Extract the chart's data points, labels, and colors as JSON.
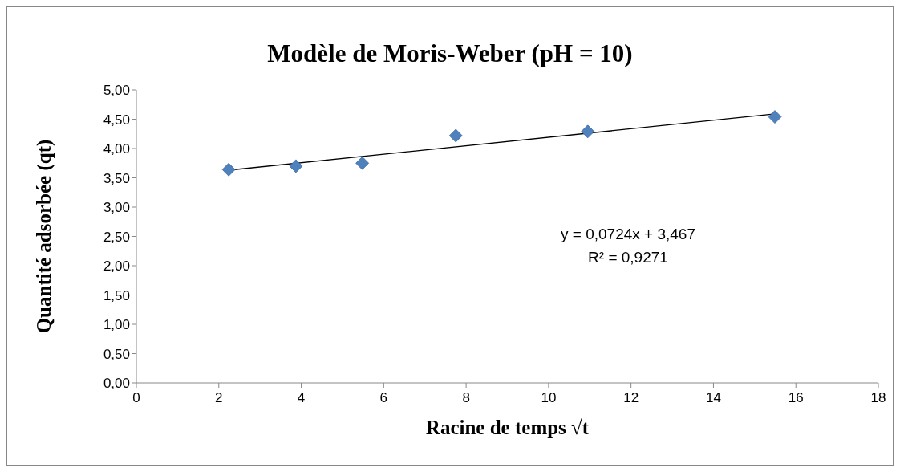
{
  "chart_data": {
    "type": "scatter",
    "title": "Modèle de Moris-Weber (pH = 10)",
    "xlabel": "Racine de temps √t",
    "ylabel": "Quantité adsorbée (qt)",
    "x": [
      2.24,
      3.87,
      5.48,
      7.75,
      10.95,
      15.49
    ],
    "series": [
      {
        "color": "#4f81bd",
        "values": [
          3.64,
          3.7,
          3.75,
          4.22,
          4.29,
          4.54
        ],
        "marker": "diamond"
      },
      {
        "type": "line",
        "color": "#000000",
        "x": [
          2.24,
          15.49
        ],
        "values": [
          3.63,
          4.59
        ],
        "marker": "none"
      }
    ],
    "xlim": [
      0,
      18
    ],
    "xticks": [
      0,
      2,
      4,
      6,
      8,
      10,
      12,
      14,
      16,
      18
    ],
    "ylim": [
      0,
      5
    ],
    "yticks": [
      {
        "value": 0,
        "label": "0,00"
      },
      {
        "value": 0.5,
        "label": "0,50"
      },
      {
        "value": 1,
        "label": "1,00"
      },
      {
        "value": 1.5,
        "label": "1,50"
      },
      {
        "value": 2,
        "label": "2,00"
      },
      {
        "value": 2.5,
        "label": "2,50"
      },
      {
        "value": 3,
        "label": "3,00"
      },
      {
        "value": 3.5,
        "label": "3,50"
      },
      {
        "value": 4,
        "label": "4,00"
      },
      {
        "value": 4.5,
        "label": "4,50"
      },
      {
        "value": 5,
        "label": "5,00"
      }
    ],
    "annotations": [
      "y = 0,0724x + 3,467",
      "R² = 0,9271"
    ],
    "grid": false,
    "legend": false
  }
}
